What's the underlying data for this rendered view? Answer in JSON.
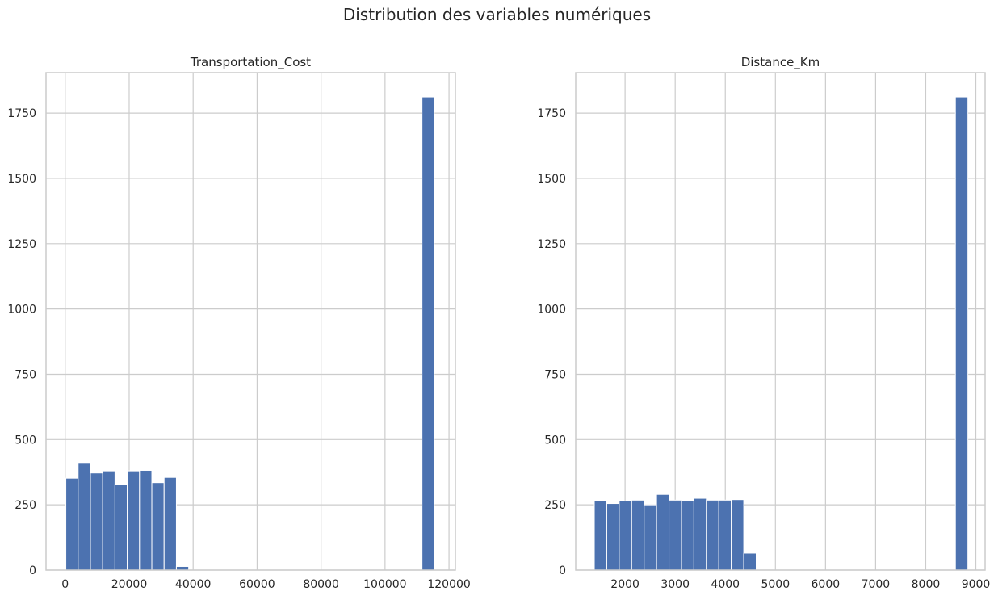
{
  "figure": {
    "suptitle": "Distribution des variables numériques"
  },
  "colors": {
    "bar": "#4c72b0",
    "grid": "#cccccc",
    "axis": "#cccccc",
    "text": "#262626",
    "background": "#ffffff"
  },
  "chart_data": [
    {
      "type": "bar",
      "title": "Transportation_Cost",
      "xlabel": "",
      "ylabel": "",
      "xlim": [
        -6000,
        122000
      ],
      "ylim": [
        0,
        1905
      ],
      "xticks": [
        0,
        20000,
        40000,
        60000,
        80000,
        100000,
        120000
      ],
      "xtick_labels": [
        "0",
        "20000",
        "40000",
        "60000",
        "80000",
        "100000",
        "120000"
      ],
      "yticks": [
        0,
        250,
        500,
        750,
        1000,
        1250,
        1500,
        1750
      ],
      "ytick_labels": [
        "0",
        "250",
        "500",
        "750",
        "1000",
        "1250",
        "1500",
        "1750"
      ],
      "grid": true,
      "bin_start": 200,
      "bin_width": 3840,
      "values": [
        352,
        412,
        372,
        380,
        328,
        380,
        382,
        335,
        355,
        14,
        0,
        0,
        0,
        0,
        0,
        0,
        0,
        0,
        0,
        0,
        0,
        0,
        0,
        0,
        0,
        0,
        0,
        0,
        0,
        1812
      ]
    },
    {
      "type": "bar",
      "title": "Distance_Km",
      "xlabel": "",
      "ylabel": "",
      "xlim": [
        1015,
        9185
      ],
      "ylim": [
        0,
        1905
      ],
      "xticks": [
        2000,
        3000,
        4000,
        5000,
        6000,
        7000,
        8000,
        9000
      ],
      "xtick_labels": [
        "2000",
        "3000",
        "4000",
        "5000",
        "6000",
        "7000",
        "8000",
        "9000"
      ],
      "yticks": [
        0,
        250,
        500,
        750,
        1000,
        1250,
        1500,
        1750
      ],
      "ytick_labels": [
        "0",
        "250",
        "500",
        "750",
        "1000",
        "1250",
        "1500",
        "1750"
      ],
      "grid": true,
      "bin_start": 1386,
      "bin_width": 248.5,
      "values": [
        265,
        255,
        265,
        268,
        250,
        290,
        268,
        265,
        275,
        268,
        268,
        270,
        65,
        0,
        0,
        0,
        0,
        0,
        0,
        0,
        0,
        0,
        0,
        0,
        0,
        0,
        0,
        0,
        0,
        1812
      ]
    }
  ]
}
